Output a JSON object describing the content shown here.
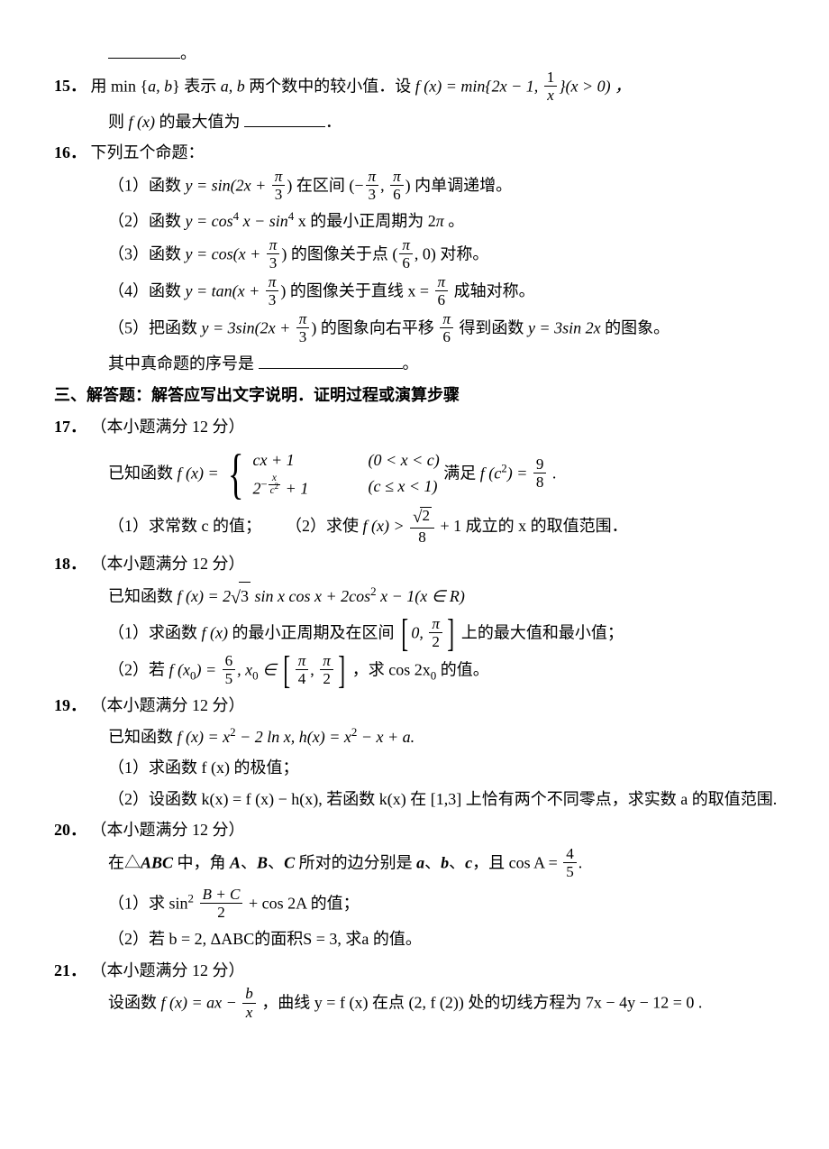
{
  "top_blank_trail": "。",
  "q15": {
    "num": "15．",
    "text_a": "用 min",
    "braceL": "{",
    "ab": "a, b",
    "braceR": "}",
    "text_b": " 表示",
    "ab2": "a, b",
    "text_c": " 两个数中的较小值．设 ",
    "fxeq": "f (x) = min{2x − 1, ",
    "frac_n": "1",
    "frac_d": "x",
    "tail": "}(x > 0) ，",
    "line2_a": "则 ",
    "fx": "f (x)",
    "line2_b": " 的最大值为",
    "period": "．"
  },
  "q16": {
    "num": "16．",
    "title": "下列五个命题：",
    "p1_a": "（1）函数 ",
    "p1_y": "y = sin(2x + ",
    "p1_f1n": "π",
    "p1_f1d": "3",
    "p1_mid": ") 在区间 (−",
    "p1_f2n": "π",
    "p1_f2d": "3",
    "p1_comma": ", ",
    "p1_f3n": "π",
    "p1_f3d": "6",
    "p1_tail": ") 内单调递增。",
    "p2_a": "（2）函数 ",
    "p2_y": "y = cos",
    "p2_sup": "4",
    "p2_mid": " x − sin",
    "p2_sup2": "4",
    "p2_tail": " x 的最小正周期为 2",
    "p2_pi": "π",
    "p2_end": " 。",
    "p3_a": "（3）函数 ",
    "p3_y": "y = cos(x + ",
    "p3_f1n": "π",
    "p3_f1d": "3",
    "p3_mid": ") 的图像关于点 (",
    "p3_f2n": "π",
    "p3_f2d": "6",
    "p3_tail": ", 0) 对称。",
    "p4_a": "（4）函数 ",
    "p4_y": "y = tan(x + ",
    "p4_f1n": "π",
    "p4_f1d": "3",
    "p4_mid": ") 的图像关于直线 x = ",
    "p4_f2n": "π",
    "p4_f2d": "6",
    "p4_tail": " 成轴对称。",
    "p5_a": "（5）把函数 ",
    "p5_y": "y = 3sin(2x + ",
    "p5_f1n": "π",
    "p5_f1d": "3",
    "p5_mid": ") 的图象向右平移 ",
    "p5_f2n": "π",
    "p5_f2d": "6",
    "p5_mid2": " 得到函数 ",
    "p5_y2": "y = 3sin 2x",
    "p5_tail": " 的图象。",
    "foot_a": "其中真命题的序号是",
    "foot_b": "。"
  },
  "section3": "三、解答题：解答应写出文字说明．证明过程或演算步骤",
  "q17": {
    "num": "17．",
    "title": "（本小题满分 12 分）",
    "l1_a": "已知函数 ",
    "fx": "f (x) = ",
    "c1a": "cx + 1",
    "c1b": "(0 < x < c)",
    "c2a_pre": "2",
    "c2a_supn": "x",
    "c2a_supd": "c",
    "c2a_sup2": "2",
    "c2a_post": " + 1",
    "c2a_neg": "−",
    "c2b": "(c ≤ x < 1)",
    "l1_mid": " 满足 ",
    "fc2": "f (c",
    "sup2": "2",
    "fc2b": ") = ",
    "fr_n": "9",
    "fr_d": "8",
    "l1_end": " .",
    "p1": "（1）求常数 c 的值；",
    "p2_a": "（2）求使 ",
    "p2_fx": "f (x) > ",
    "p2_frn": "√2",
    "p2_frd": "8",
    "p2_tail": " + 1 成立的 x 的取值范围．"
  },
  "q18": {
    "num": "18．",
    "title": "（本小题满分 12 分）",
    "l1_a": "已知函数 ",
    "l1_fx": "f (x) = 2",
    "l1_sq": "3",
    "l1_mid": " sin x cos x + 2cos",
    "l1_sup": "2",
    "l1_tail": " x − 1(x ∈ R)",
    "p1_a": "（1）求函数 ",
    "p1_fx": "f (x)",
    "p1_mid": " 的最小正周期及在区间 ",
    "p1_l": "0, ",
    "p1_frn": "π",
    "p1_frd": "2",
    "p1_tail": " 上的最大值和最小值；",
    "p2_a": "（2）若 ",
    "p2_fx0": "f (x",
    "p2_sub0": "0",
    "p2_eq": ") = ",
    "p2_f1n": "6",
    "p2_f1d": "5",
    "p2_comma": ", x",
    "p2_sub0b": "0",
    "p2_in": " ∈ ",
    "p2_l1n": "π",
    "p2_l1d": "4",
    "p2_lc": ", ",
    "p2_l2n": "π",
    "p2_l2d": "2",
    "p2_mid": " ，求 cos 2x",
    "p2_sub0c": "0",
    "p2_tail": " 的值。"
  },
  "q19": {
    "num": "19．",
    "title": " （本小题满分 12 分）",
    "l1_a": "已知函数 ",
    "l1_f": "f (x) = x",
    "l1_s2": "2",
    "l1_m": " − 2 ln x, h(x) = x",
    "l1_s2b": "2",
    "l1_t": " − x + a.",
    "p1": "（1）求函数 f (x) 的极值；",
    "p2_a": "（2）设函数 k(x) = f (x) − h(x), 若函数 k(x) 在 [1,3] 上恰有两个不同零点，求实数 a 的取值范围."
  },
  "q20": {
    "num": "20．",
    "title": "（本小题满分 12 分）",
    "l1_a": "在△",
    "l1_abc": "ABC",
    "l1_mid": " 中，角 ",
    "l1_A": "A",
    "l1_c1": "、",
    "l1_B": "B",
    "l1_c2": "、",
    "l1_C": "C",
    "l1_mid2": " 所对的边分别是 ",
    "l1_a2": "a",
    "l1_c3": "、",
    "l1_b2": "b",
    "l1_c4": "、",
    "l1_cc": "c",
    "l1_mid3": "，且 cos A = ",
    "l1_frn": "4",
    "l1_frd": "5",
    "l1_tail": ".",
    "p1_a": "（1）求 sin",
    "p1_sup": "2",
    "p1_sp": " ",
    "p1_frn": "B + C",
    "p1_frd": "2",
    "p1_mid": " + cos 2A 的值；",
    "p2": "（2）若 b = 2, ΔABC的面积S = 3, 求a 的值。"
  },
  "q21": {
    "num": "21．",
    "title": "（本小题满分 12 分）",
    "l1_a": "设函数 ",
    "l1_fx": "f (x) = ax − ",
    "l1_frn": "b",
    "l1_frd": "x",
    "l1_mid": " ，曲线 y = f (x) 在点 (2, f (2)) 处的切线方程为 7x − 4y − 12 = 0 ."
  }
}
